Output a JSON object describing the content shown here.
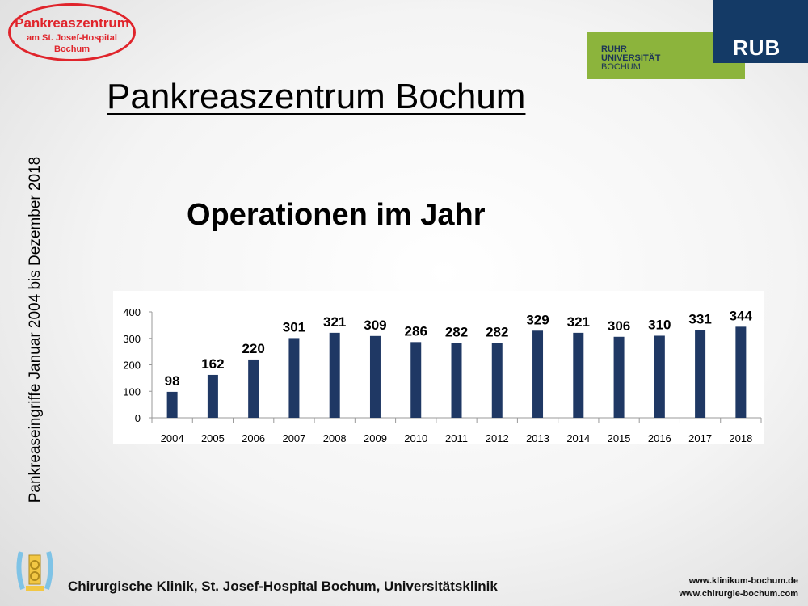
{
  "logo": {
    "main": "Pankreaszentrum",
    "sub": "am St. Josef-Hospital",
    "sub2": "Bochum"
  },
  "rub": {
    "line1": "RUHR",
    "line2": "UNIVERSITÄT",
    "line3": "BOCHUM",
    "mark": "RUB"
  },
  "slide_title": "Pankreaszentrum Bochum",
  "side_label": "Pankreaseingriffe Januar 2004 bis Dezember 2018",
  "footer": {
    "clinic": "Chirurgische Klinik, St. Josef-Hospital Bochum, Universitätsklinik",
    "url1": "www.klinikum-bochum.de",
    "url2": "www.chirurgie-bochum.com"
  },
  "colors": {
    "bar": "#1f3864",
    "accent_red": "#e0242b",
    "rub_green": "#8cb43c",
    "rub_blue": "#143a66"
  },
  "chart_data": {
    "type": "bar",
    "title": "Operationen im Jahr",
    "xlabel": "",
    "ylabel": "",
    "ylim": [
      0,
      400
    ],
    "yticks": [
      "0",
      "100",
      "200",
      "300",
      "400"
    ],
    "categories": [
      "2004",
      "2005",
      "2006",
      "2007",
      "2008",
      "2009",
      "2010",
      "2011",
      "2012",
      "2013",
      "2014",
      "2015",
      "2016",
      "2017",
      "2018"
    ],
    "values": [
      98,
      162,
      220,
      301,
      321,
      309,
      286,
      282,
      282,
      329,
      321,
      306,
      310,
      331,
      344
    ],
    "grid": false,
    "legend": "none"
  }
}
